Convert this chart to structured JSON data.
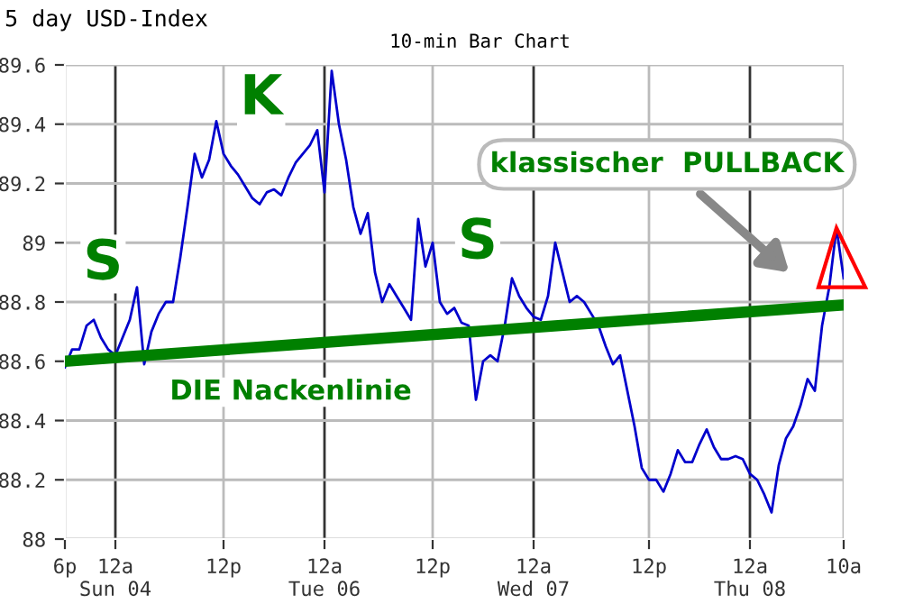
{
  "chart_data": {
    "type": "line",
    "title": "5 day USD-Index",
    "subtitle": "10-min Bar Chart",
    "categories": [
      "6p",
      null,
      null,
      null,
      null,
      null,
      null,
      "12a\nSun 04",
      null,
      null,
      null,
      null,
      null,
      null,
      null,
      null,
      null,
      null,
      null,
      null,
      null,
      null,
      "12p",
      null,
      null,
      null,
      null,
      null,
      null,
      null,
      null,
      null,
      null,
      null,
      null,
      null,
      "12a\nTue 06",
      null,
      null,
      null,
      null,
      null,
      null,
      null,
      null,
      null,
      null,
      null,
      null,
      null,
      null,
      "12p",
      null,
      null,
      null,
      null,
      null,
      null,
      null,
      null,
      null,
      null,
      null,
      null,
      null,
      "12a\nWed 07",
      null,
      null,
      null,
      null,
      null,
      null,
      null,
      null,
      null,
      null,
      null,
      null,
      null,
      null,
      null,
      "12p",
      null,
      null,
      null,
      null,
      null,
      null,
      null,
      null,
      null,
      null,
      null,
      null,
      null,
      "12a\nThu 08",
      null,
      null,
      null,
      null,
      null,
      null,
      null,
      null,
      null,
      null,
      null,
      null,
      "10a"
    ],
    "ylim": [
      88,
      89.6
    ],
    "yticks": [
      88,
      88.2,
      88.4,
      88.6,
      88.8,
      89,
      89.2,
      89.4,
      89.6
    ],
    "grid": true,
    "marker": "none",
    "line_style": "solid",
    "series": [
      {
        "color": "#0000cc",
        "values": [
          88.58,
          88.64,
          88.64,
          88.72,
          88.74,
          88.68,
          88.64,
          88.62,
          88.68,
          88.74,
          88.85,
          88.59,
          88.7,
          88.76,
          88.8,
          88.8,
          88.95,
          89.12,
          89.3,
          89.22,
          89.28,
          89.41,
          89.3,
          89.26,
          89.23,
          89.19,
          89.15,
          89.13,
          89.17,
          89.18,
          89.16,
          89.22,
          89.27,
          89.3,
          89.33,
          89.38,
          89.17,
          89.58,
          89.4,
          89.28,
          89.12,
          89.03,
          89.1,
          88.9,
          88.8,
          88.86,
          88.82,
          88.78,
          88.74,
          89.08,
          88.92,
          89.0,
          88.8,
          88.76,
          88.78,
          88.73,
          88.72,
          88.47,
          88.6,
          88.62,
          88.6,
          88.72,
          88.88,
          88.82,
          88.78,
          88.75,
          88.74,
          88.82,
          89.0,
          88.9,
          88.8,
          88.82,
          88.8,
          88.76,
          88.72,
          88.65,
          88.59,
          88.62,
          88.5,
          88.38,
          88.24,
          88.2,
          88.2,
          88.16,
          88.22,
          88.3,
          88.26,
          88.26,
          88.32,
          88.37,
          88.31,
          88.27,
          88.27,
          88.28,
          88.27,
          88.22,
          88.2,
          88.15,
          88.09,
          88.25,
          88.34,
          88.38,
          88.45,
          88.54,
          88.5,
          88.72,
          88.85,
          89.05,
          88.88
        ]
      },
      {
        "color": "#008000",
        "x": [
          "6p",
          "10a"
        ],
        "values": [
          88.6,
          88.79
        ]
      }
    ],
    "annotations": [
      "S",
      "K",
      "S",
      "DIE Nackenlinie",
      "klassischer  PULLBACK"
    ]
  }
}
